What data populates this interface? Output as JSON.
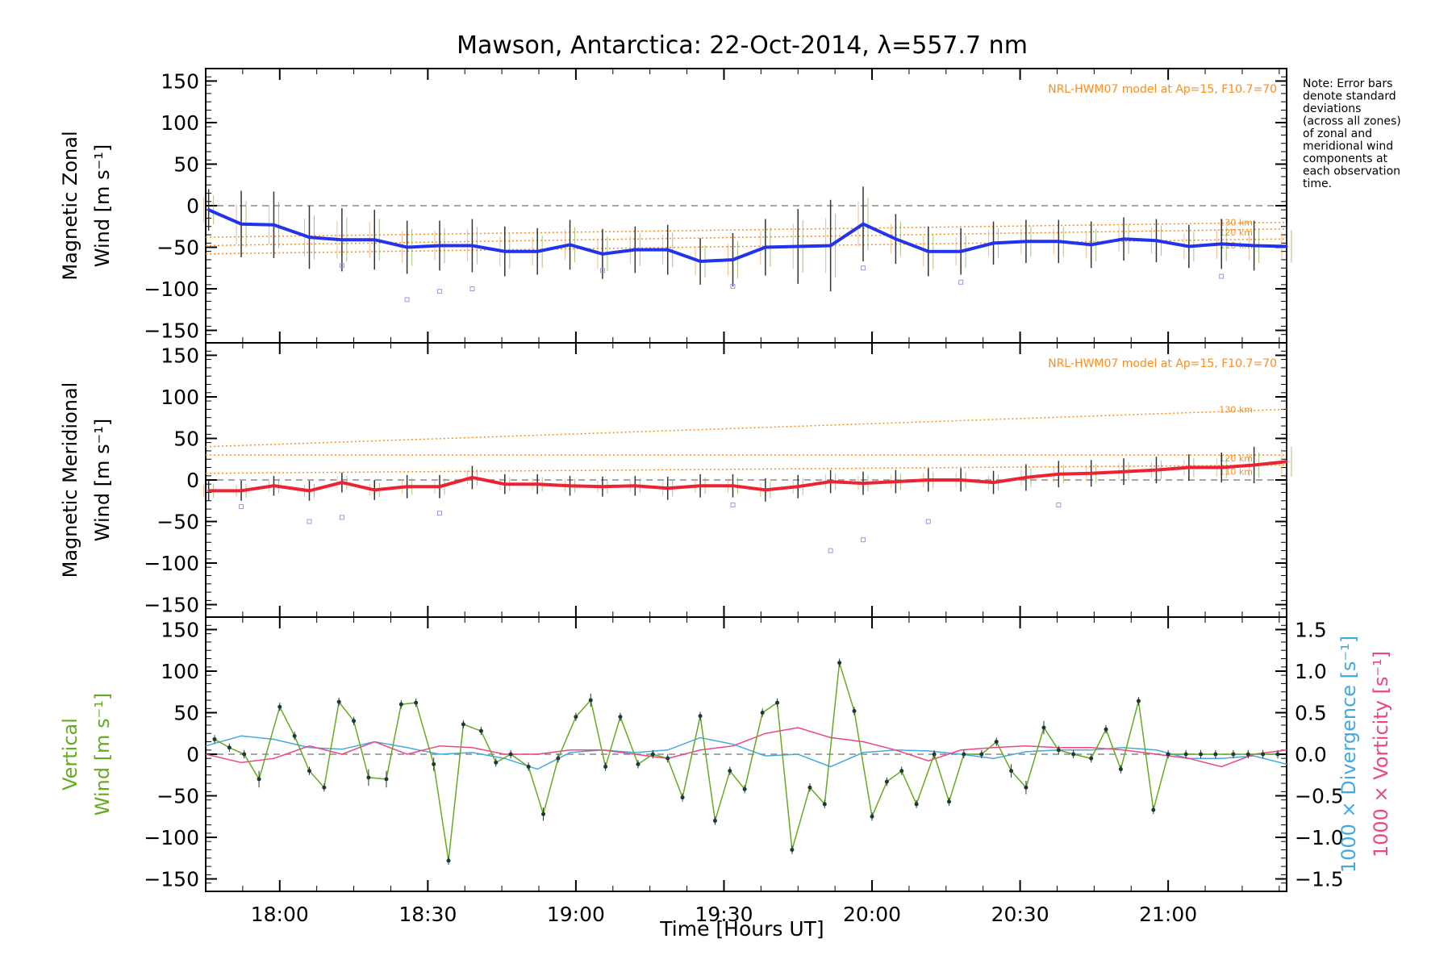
{
  "title": "Mawson, Antarctica: 22-Oct-2014, λ=557.7 nm",
  "note_lines": [
    "Note: Error bars",
    "denote standard",
    "deviations",
    "(across all zones)",
    "of zonal and",
    "meridional wind",
    "components at",
    "each observation",
    "time."
  ],
  "colors": {
    "zonal": "#2233ee",
    "meridional": "#ee2233",
    "vertical": "#66aa22",
    "divergence": "#44aadd",
    "vorticity": "#ee4488",
    "model": "#ff8c1a",
    "samples": "#9999dd"
  },
  "chart_data": {
    "type": "line",
    "x_unit": "hours UT",
    "xlim": [
      17.75,
      21.4
    ],
    "xticks": [
      18.0,
      18.5,
      19.0,
      19.5,
      20.0,
      20.5,
      21.0
    ],
    "xtick_labels": [
      "18:00",
      "18:30",
      "19:00",
      "19:30",
      "20:00",
      "20:30",
      "21:00"
    ],
    "xlabel": "Time [Hours UT]",
    "panels": [
      {
        "name": "zonal",
        "ylabel_lines": [
          "Magnetic Zonal",
          "Wind [m s⁻¹]"
        ],
        "ylim": [
          -165,
          165
        ],
        "yticks": [
          -150,
          -100,
          -50,
          0,
          50,
          100,
          150
        ],
        "ytick_labels": [
          "−150",
          "−100",
          "−50",
          "0",
          "50",
          "100",
          "150"
        ],
        "model_note": "NRL-HWM07 model at Ap=15, F10.7=70",
        "model_lines": [
          {
            "label": "130 km",
            "y_start": -38,
            "y_end": -20
          },
          {
            "label": "120 km",
            "y_start": -48,
            "y_end": -28
          },
          {
            "label": "110 km",
            "y_start": -58,
            "y_end": -40
          }
        ],
        "series": [
          {
            "x": [
              17.76,
              17.87,
              17.98,
              18.1,
              18.21,
              18.32,
              18.43,
              18.54,
              18.65,
              18.76,
              18.87,
              18.98,
              19.09,
              19.2,
              19.31,
              19.42,
              19.53,
              19.64,
              19.75,
              19.86,
              19.97,
              20.08,
              20.19,
              20.3,
              20.41,
              20.52,
              20.63,
              20.74,
              20.85,
              20.96,
              21.07,
              21.18,
              21.29,
              21.4
            ],
            "y": [
              -5,
              -22,
              -23,
              -38,
              -41,
              -41,
              -50,
              -48,
              -48,
              -55,
              -55,
              -47,
              -58,
              -53,
              -53,
              -67,
              -65,
              -50,
              -49,
              -48,
              -22,
              -40,
              -55,
              -55,
              -45,
              -43,
              -43,
              -47,
              -40,
              -42,
              -49,
              -46,
              -48,
              -49
            ],
            "err": [
              25,
              40,
              40,
              38,
              38,
              36,
              32,
              30,
              32,
              30,
              28,
              30,
              30,
              28,
              30,
              28,
              32,
              34,
              45,
              55,
              45,
              30,
              30,
              28,
              26,
              26,
              26,
              28,
              26,
              26,
              26,
              30,
              30,
              28
            ]
          }
        ],
        "markers": [
          {
            "x": 18.43,
            "y": -113
          },
          {
            "x": 18.54,
            "y": -103
          },
          {
            "x": 18.65,
            "y": -100
          },
          {
            "x": 19.53,
            "y": -97
          },
          {
            "x": 19.97,
            "y": -75
          },
          {
            "x": 20.3,
            "y": -92
          },
          {
            "x": 21.18,
            "y": -85
          },
          {
            "x": 18.21,
            "y": -72
          },
          {
            "x": 19.09,
            "y": -78
          }
        ]
      },
      {
        "name": "meridional",
        "ylabel_lines": [
          "Magnetic Meridional",
          "Wind [m s⁻¹]"
        ],
        "ylim": [
          -165,
          165
        ],
        "yticks": [
          -150,
          -100,
          -50,
          0,
          50,
          100,
          150
        ],
        "ytick_labels": [
          "−150",
          "−100",
          "−50",
          "0",
          "50",
          "100",
          "150"
        ],
        "model_note": "NRL-HWM07 model at Ap=15, F10.7=70",
        "model_lines": [
          {
            "label": "130 km",
            "y_start": 40,
            "y_end": 85
          },
          {
            "label": "120 km",
            "y_start": 30,
            "y_end": 30
          },
          {
            "label": "110 km",
            "y_start": 8,
            "y_end": 18
          }
        ],
        "series": [
          {
            "x": [
              17.76,
              17.87,
              17.98,
              18.1,
              18.21,
              18.32,
              18.43,
              18.54,
              18.65,
              18.76,
              18.87,
              18.98,
              19.09,
              19.2,
              19.31,
              19.42,
              19.53,
              19.64,
              19.75,
              19.86,
              19.97,
              20.08,
              20.19,
              20.3,
              20.41,
              20.52,
              20.63,
              20.74,
              20.85,
              20.96,
              21.07,
              21.18,
              21.29,
              21.4
            ],
            "y": [
              -13,
              -13,
              -7,
              -13,
              -3,
              -12,
              -8,
              -8,
              3,
              -5,
              -5,
              -7,
              -8,
              -7,
              -10,
              -7,
              -7,
              -12,
              -8,
              -2,
              -4,
              -2,
              0,
              0,
              -3,
              3,
              7,
              8,
              10,
              12,
              15,
              15,
              18,
              22
            ],
            "err": [
              12,
              12,
              12,
              12,
              12,
              12,
              14,
              14,
              14,
              12,
              12,
              12,
              12,
              12,
              14,
              14,
              14,
              14,
              14,
              14,
              14,
              14,
              14,
              14,
              14,
              16,
              16,
              16,
              16,
              16,
              16,
              18,
              22,
              26
            ]
          }
        ],
        "markers": [
          {
            "x": 17.87,
            "y": -32
          },
          {
            "x": 18.1,
            "y": -50
          },
          {
            "x": 18.21,
            "y": -45
          },
          {
            "x": 18.54,
            "y": -40
          },
          {
            "x": 19.86,
            "y": -85
          },
          {
            "x": 19.97,
            "y": -72
          },
          {
            "x": 20.19,
            "y": -50
          },
          {
            "x": 20.63,
            "y": -30
          },
          {
            "x": 19.53,
            "y": -30
          }
        ]
      },
      {
        "name": "vertical",
        "ylabel_lines": [
          "Vertical",
          "Wind [m s⁻¹]"
        ],
        "ylim": [
          -165,
          165
        ],
        "yticks": [
          -150,
          -100,
          -50,
          0,
          50,
          100,
          150
        ],
        "ytick_labels": [
          "−150",
          "−100",
          "−50",
          "0",
          "50",
          "100",
          "150"
        ],
        "y2lim": [
          -1.65,
          1.65
        ],
        "y2ticks": [
          -1.5,
          -1.0,
          -0.5,
          0.0,
          0.5,
          1.0,
          1.5
        ],
        "y2tick_labels": [
          "−1.5",
          "−1.0",
          "−0.5",
          "0.0",
          "0.5",
          "1.0",
          "1.5"
        ],
        "y2label_div": "1000 × Divergence [s⁻¹]",
        "y2label_vort": "1000 × Vorticity [s⁻¹]",
        "vertical": {
          "x": [
            17.78,
            17.83,
            17.88,
            17.93,
            18.0,
            18.05,
            18.1,
            18.15,
            18.2,
            18.25,
            18.3,
            18.36,
            18.41,
            18.46,
            18.52,
            18.57,
            18.62,
            18.68,
            18.73,
            18.78,
            18.84,
            18.89,
            18.94,
            19.0,
            19.05,
            19.1,
            19.15,
            19.21,
            19.26,
            19.31,
            19.36,
            19.42,
            19.47,
            19.52,
            19.57,
            19.63,
            19.68,
            19.73,
            19.79,
            19.84,
            19.89,
            19.94,
            20.0,
            20.05,
            20.1,
            20.15,
            20.21,
            20.26,
            20.31,
            20.37,
            20.42,
            20.47,
            20.52,
            20.58,
            20.63,
            20.68,
            20.74,
            20.79,
            20.84,
            20.9,
            20.95,
            21.0,
            21.06,
            21.11,
            21.16,
            21.22,
            21.27,
            21.32,
            21.37
          ],
          "y": [
            18,
            8,
            0,
            -30,
            57,
            22,
            -20,
            -40,
            63,
            40,
            -28,
            -30,
            60,
            62,
            -12,
            -128,
            36,
            28,
            -10,
            0,
            -15,
            -72,
            -5,
            45,
            65,
            -15,
            45,
            -12,
            0,
            -5,
            -52,
            46,
            -80,
            -20,
            -42,
            50,
            62,
            -115,
            -40,
            -60,
            110,
            52,
            -75,
            -33,
            -20,
            -60,
            0,
            -57,
            0,
            0,
            15,
            -20,
            -40,
            32,
            5,
            0,
            -5,
            30,
            -18,
            64,
            -67,
            0,
            0,
            0,
            0,
            0,
            0,
            0,
            0
          ],
          "err": [
            5,
            5,
            5,
            10,
            5,
            5,
            5,
            5,
            5,
            5,
            10,
            10,
            5,
            5,
            8,
            5,
            5,
            5,
            5,
            5,
            5,
            8,
            5,
            5,
            8,
            5,
            5,
            5,
            5,
            5,
            5,
            5,
            5,
            5,
            5,
            5,
            5,
            5,
            5,
            5,
            5,
            5,
            5,
            5,
            5,
            5,
            5,
            5,
            5,
            5,
            5,
            8,
            8,
            8,
            5,
            5,
            5,
            5,
            5,
            5,
            5,
            5,
            5,
            5,
            5,
            5,
            5,
            5,
            5
          ]
        },
        "divergence": {
          "x": [
            17.75,
            17.87,
            17.98,
            18.1,
            18.21,
            18.32,
            18.43,
            18.54,
            18.65,
            18.76,
            18.87,
            18.98,
            19.09,
            19.2,
            19.31,
            19.42,
            19.53,
            19.64,
            19.75,
            19.86,
            19.97,
            20.08,
            20.19,
            20.3,
            20.41,
            20.52,
            20.63,
            20.74,
            20.85,
            20.96,
            21.07,
            21.18,
            21.29,
            21.4
          ],
          "y": [
            0.1,
            0.22,
            0.18,
            0.08,
            0.06,
            0.15,
            0.08,
            0.0,
            0.02,
            -0.05,
            -0.18,
            0.02,
            0.05,
            0.02,
            0.05,
            0.2,
            0.12,
            -0.02,
            0.0,
            -0.15,
            0.02,
            0.05,
            0.04,
            0.0,
            -0.05,
            0.03,
            0.05,
            0.05,
            0.08,
            0.05,
            -0.05,
            -0.05,
            -0.02,
            -0.12
          ],
          "color_key": "divergence"
        },
        "vorticity": {
          "x": [
            17.75,
            17.87,
            17.98,
            18.1,
            18.21,
            18.32,
            18.43,
            18.54,
            18.65,
            18.76,
            18.87,
            18.98,
            19.09,
            19.2,
            19.31,
            19.42,
            19.53,
            19.64,
            19.75,
            19.86,
            19.97,
            20.08,
            20.19,
            20.3,
            20.41,
            20.52,
            20.63,
            20.74,
            20.85,
            20.96,
            21.07,
            21.18,
            21.29,
            21.4
          ],
          "y": [
            0.0,
            -0.1,
            -0.05,
            0.1,
            0.0,
            0.15,
            0.0,
            0.1,
            0.08,
            0.0,
            0.0,
            0.05,
            0.05,
            0.0,
            -0.05,
            0.05,
            0.1,
            0.25,
            0.32,
            0.2,
            0.15,
            0.05,
            -0.08,
            0.05,
            0.08,
            0.1,
            0.08,
            0.08,
            0.05,
            0.0,
            -0.05,
            -0.15,
            0.0,
            0.05
          ]
        }
      }
    ]
  }
}
